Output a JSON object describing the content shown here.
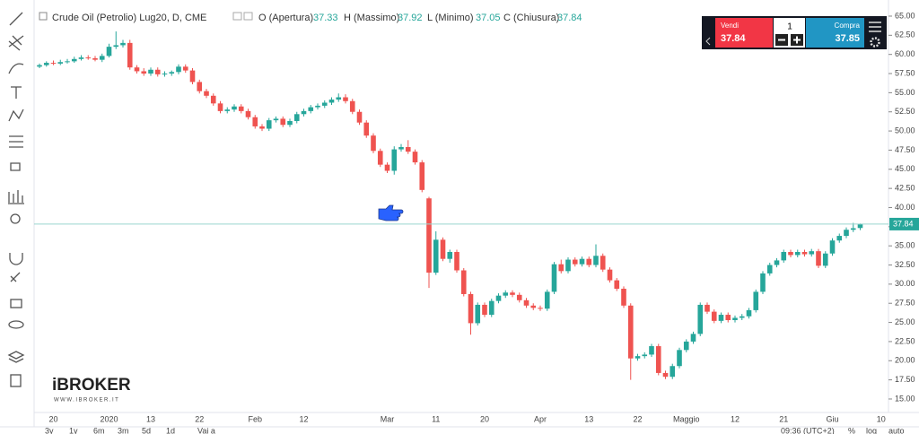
{
  "chart_data": {
    "type": "candlestick",
    "title": "Crude Oil (Petrolio) Lug20, D, CME",
    "ohlc_labels": [
      "O (Apertura)",
      "H (Massimo)",
      "L (Minimo)",
      "C (Chiusura)"
    ],
    "up_color": "#26a69a",
    "down_color": "#ef5350",
    "categories": [
      null,
      null,
      "20",
      null,
      null,
      null,
      null,
      null,
      null,
      null,
      "2020",
      null,
      null,
      null,
      null,
      null,
      "13",
      null,
      null,
      null,
      null,
      null,
      null,
      "22",
      null,
      null,
      null,
      null,
      null,
      null,
      null,
      "Feb",
      null,
      null,
      null,
      null,
      null,
      null,
      "12",
      null,
      null,
      null,
      null,
      null,
      null,
      null,
      null,
      null,
      null,
      null,
      "Mar",
      null,
      null,
      null,
      null,
      null,
      null,
      "11",
      null,
      null,
      null,
      null,
      null,
      null,
      "20",
      null,
      null,
      null,
      null,
      null,
      null,
      null,
      "Apr",
      null,
      null,
      null,
      null,
      null,
      null,
      "13",
      null,
      null,
      null,
      null,
      null,
      null,
      "22",
      null,
      null,
      null,
      null,
      null,
      null,
      "Maggio",
      null,
      null,
      null,
      null,
      null,
      null,
      "12",
      null,
      null,
      null,
      null,
      null,
      null,
      "21",
      null,
      null,
      null,
      null,
      null,
      null,
      "Giu",
      null,
      null,
      null,
      null,
      null,
      null,
      "10"
    ],
    "open": [
      58.4,
      58.6,
      58.9,
      58.8,
      59.0,
      59.1,
      59.4,
      59.6,
      59.5,
      59.3,
      59.8,
      61.0,
      61.2,
      61.5,
      58.3,
      57.8,
      57.5,
      58.0,
      57.4,
      57.5,
      57.7,
      58.4,
      57.9,
      56.4,
      55.2,
      54.6,
      53.6,
      52.6,
      52.8,
      53.2,
      52.6,
      51.8,
      50.6,
      50.3,
      51.4,
      51.6,
      50.8,
      51.3,
      52.2,
      52.6,
      53.1,
      53.3,
      53.7,
      54.1,
      54.4,
      53.9,
      52.5,
      51.1,
      49.4,
      47.4,
      45.6,
      44.8,
      47.6,
      47.9,
      47.3,
      45.9,
      41.2,
      31.5,
      35.8,
      33.3,
      34.2,
      31.8,
      28.7,
      24.9,
      27.3,
      26.0,
      27.8,
      28.5,
      28.9,
      28.6,
      27.9,
      27.2,
      26.9,
      26.8,
      29.0,
      32.6,
      31.7,
      33.2,
      32.6,
      33.3,
      32.5,
      33.7,
      31.9,
      30.5,
      29.4,
      27.2,
      20.3,
      20.6,
      20.8,
      21.9,
      18.4,
      17.9,
      19.3,
      21.4,
      22.5,
      23.5,
      27.3,
      26.4,
      25.2,
      26.0,
      25.3,
      25.6,
      25.8,
      26.6,
      29.0,
      31.4,
      32.5,
      33.1,
      34.2,
      33.8,
      34.2,
      33.9,
      34.3,
      32.4,
      34.0,
      35.7,
      36.3,
      37.1,
      37.33,
      null,
      null,
      null
    ],
    "high": [
      58.8,
      59.1,
      59.2,
      59.3,
      59.4,
      59.7,
      59.9,
      59.9,
      59.8,
      60.1,
      61.4,
      63.0,
      61.9,
      61.9,
      58.6,
      58.2,
      58.3,
      58.3,
      57.8,
      57.9,
      58.7,
      58.7,
      58.2,
      56.7,
      55.5,
      54.9,
      53.9,
      53.1,
      53.5,
      53.5,
      52.9,
      52.1,
      50.9,
      51.7,
      51.9,
      51.9,
      51.6,
      52.5,
      52.9,
      53.4,
      53.6,
      54.0,
      54.4,
      54.9,
      54.8,
      54.2,
      52.8,
      51.4,
      49.7,
      47.7,
      45.9,
      48.0,
      48.3,
      48.8,
      47.6,
      46.2,
      41.4,
      36.9,
      36.1,
      34.5,
      34.5,
      32.1,
      29.0,
      27.6,
      27.6,
      28.1,
      28.8,
      29.2,
      29.2,
      28.9,
      28.2,
      27.5,
      27.2,
      29.3,
      32.9,
      33.2,
      33.5,
      33.5,
      33.6,
      33.6,
      35.2,
      34.0,
      32.2,
      30.8,
      29.7,
      27.5,
      20.9,
      21.1,
      22.2,
      22.2,
      18.7,
      19.6,
      21.7,
      22.8,
      23.8,
      27.6,
      27.6,
      26.7,
      26.3,
      26.3,
      25.9,
      26.1,
      26.9,
      29.3,
      31.7,
      32.8,
      33.4,
      34.5,
      34.5,
      34.5,
      34.5,
      34.6,
      34.6,
      34.3,
      36.0,
      36.6,
      37.4,
      38.0,
      37.92,
      null,
      null,
      null
    ],
    "low": [
      58.2,
      58.4,
      58.6,
      58.6,
      58.8,
      58.9,
      59.2,
      59.3,
      59.1,
      59.0,
      59.6,
      60.7,
      60.9,
      58.0,
      57.5,
      57.2,
      57.2,
      57.1,
      57.1,
      57.2,
      57.4,
      57.6,
      56.1,
      54.9,
      54.3,
      53.3,
      52.3,
      52.3,
      52.5,
      52.3,
      51.5,
      50.3,
      50.0,
      50.0,
      51.1,
      50.5,
      50.5,
      51.0,
      51.9,
      52.3,
      52.8,
      53.0,
      53.4,
      53.8,
      53.6,
      52.2,
      50.8,
      49.1,
      47.1,
      45.3,
      44.5,
      44.3,
      47.3,
      47.0,
      45.6,
      42.0,
      29.5,
      31.2,
      33.0,
      32.8,
      31.5,
      28.4,
      23.4,
      24.6,
      25.7,
      25.7,
      27.5,
      28.2,
      28.3,
      27.6,
      26.9,
      26.6,
      26.5,
      26.5,
      28.7,
      31.4,
      31.4,
      32.3,
      32.3,
      32.2,
      32.2,
      31.6,
      30.2,
      29.1,
      26.9,
      17.5,
      20.0,
      20.3,
      20.5,
      18.1,
      17.6,
      17.6,
      19.0,
      21.1,
      22.2,
      23.2,
      26.1,
      24.9,
      24.9,
      25.0,
      25.0,
      25.3,
      25.5,
      26.3,
      28.7,
      31.1,
      32.2,
      32.8,
      33.5,
      33.5,
      33.6,
      33.6,
      32.1,
      32.1,
      33.7,
      35.4,
      36.0,
      36.8,
      37.05,
      null,
      null,
      null
    ],
    "close": [
      58.6,
      58.9,
      58.8,
      59.0,
      59.1,
      59.4,
      59.6,
      59.5,
      59.3,
      59.8,
      61.0,
      61.2,
      61.5,
      58.3,
      57.8,
      57.5,
      58.0,
      57.4,
      57.5,
      57.7,
      58.4,
      57.9,
      56.4,
      55.2,
      54.6,
      53.6,
      52.6,
      52.8,
      53.2,
      52.6,
      51.8,
      50.6,
      50.3,
      51.4,
      51.6,
      50.8,
      51.3,
      52.2,
      52.6,
      53.1,
      53.3,
      53.7,
      54.1,
      54.4,
      53.9,
      52.5,
      51.1,
      49.4,
      47.4,
      45.6,
      44.8,
      47.6,
      47.9,
      47.3,
      45.9,
      42.3,
      31.5,
      35.8,
      33.3,
      34.2,
      31.8,
      28.7,
      24.9,
      27.3,
      26.0,
      27.8,
      28.5,
      28.9,
      28.6,
      27.9,
      27.2,
      26.9,
      26.8,
      29.0,
      32.6,
      31.7,
      33.2,
      32.6,
      33.3,
      32.5,
      33.7,
      31.9,
      30.5,
      29.4,
      27.2,
      20.3,
      20.6,
      20.8,
      21.9,
      18.4,
      17.9,
      19.3,
      21.4,
      22.5,
      23.5,
      27.3,
      26.4,
      25.2,
      26.0,
      25.3,
      25.6,
      25.8,
      26.6,
      29.0,
      31.4,
      32.5,
      33.1,
      34.2,
      33.8,
      34.2,
      33.9,
      34.3,
      32.4,
      34.0,
      35.7,
      36.3,
      37.1,
      37.3,
      37.84,
      null,
      null,
      null
    ],
    "ylim": [
      13.24,
      66.52
    ],
    "yticks": [
      {
        "value": 15,
        "label": "15.00"
      },
      {
        "value": 17.5,
        "label": "17.50"
      },
      {
        "value": 20,
        "label": "20.00"
      },
      {
        "value": 22.5,
        "label": "22.50"
      },
      {
        "value": 25,
        "label": "25.00"
      },
      {
        "value": 27.5,
        "label": "27.50"
      },
      {
        "value": 30,
        "label": "30.00"
      },
      {
        "value": 32.5,
        "label": "32.50"
      },
      {
        "value": 35,
        "label": "35.00"
      },
      {
        "value": 37.5,
        "label": "37.50"
      },
      {
        "value": 40,
        "label": "40.00"
      },
      {
        "value": 42.5,
        "label": "42.50"
      },
      {
        "value": 45,
        "label": "45.00"
      },
      {
        "value": 47.5,
        "label": "47.50"
      },
      {
        "value": 50,
        "label": "50.00"
      },
      {
        "value": 52.5,
        "label": "52.50"
      },
      {
        "value": 55,
        "label": "55.00"
      },
      {
        "value": 57.5,
        "label": "57.50"
      },
      {
        "value": 60,
        "label": "60.00"
      },
      {
        "value": 62.5,
        "label": "62.50"
      },
      {
        "value": 65,
        "label": "65.00"
      }
    ],
    "grid": false
  },
  "trade_panel": {
    "sell_label": "Vendi",
    "sell_price": "37.84",
    "quantity": "1",
    "buy_label": "Compra",
    "buy_price": "37.85"
  },
  "watermark": {
    "brand": "iBROKER",
    "site": "WWW.IBROKER.IT"
  },
  "bottom_bar": {
    "ranges": [
      "3y",
      "1y",
      "6m",
      "3m",
      "5d",
      "1d"
    ],
    "goto": "Vai a",
    "clock": "09:36 (UTC+2)",
    "percent": "%",
    "log": "log",
    "auto": "auto"
  }
}
